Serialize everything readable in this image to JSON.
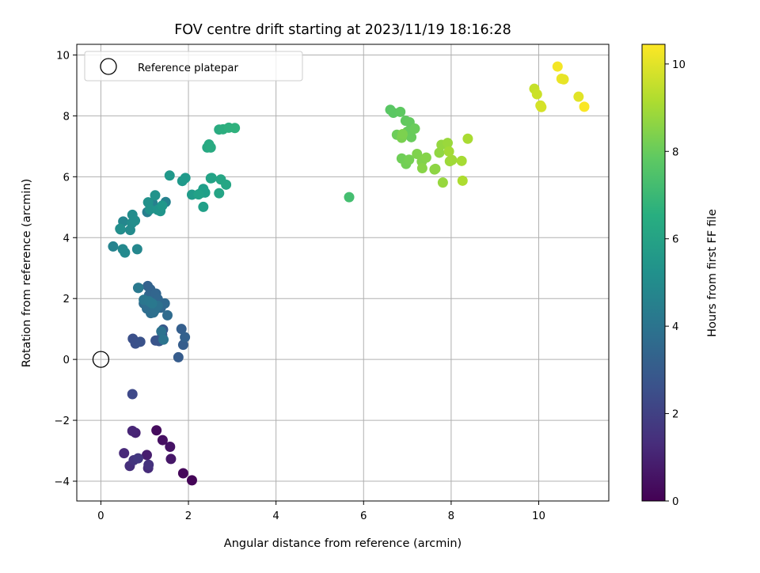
{
  "chart_data": {
    "type": "scatter",
    "title": "FOV centre drift starting at 2023/11/19 18:16:28",
    "xlabel": "Angular distance from reference (arcmin)",
    "ylabel": "Rotation from reference (arcmin)",
    "xlim": [
      -0.55,
      11.6
    ],
    "ylim": [
      -4.65,
      10.35
    ],
    "xticks": [
      0,
      2,
      4,
      6,
      8,
      10
    ],
    "yticks": [
      -4,
      -2,
      0,
      2,
      4,
      6,
      8,
      10
    ],
    "grid": true,
    "colormap": "viridis",
    "colorbar": {
      "label": "Hours from first FF file",
      "range": [
        0,
        10.45
      ],
      "ticks": [
        0,
        2,
        4,
        6,
        8,
        10
      ]
    },
    "legend": {
      "placement": "top-left",
      "entries": [
        {
          "label": "Reference platepar",
          "marker": "open-circle"
        }
      ]
    },
    "reference_point": {
      "x": 0,
      "y": 0
    },
    "series": [
      {
        "x": [
          2.08,
          1.88,
          1.27,
          1.41,
          1.58,
          1.6,
          1.05,
          0.79,
          0.72,
          0.53,
          1.08,
          0.66,
          1.09,
          0.75,
          0.85,
          0.72,
          0.73,
          0.79,
          0.9,
          1.25,
          1.33,
          1.4,
          1.42,
          1.77,
          1.88,
          1.84,
          1.92,
          1.07,
          1.13,
          1.1,
          1.26,
          1.3,
          1.37,
          1.46,
          1.52,
          0.98,
          1.05,
          1.14,
          1.2,
          1.24,
          1.3,
          1.38,
          1.43,
          0.85,
          0.98,
          1.1,
          1.17,
          0.86,
          1.06,
          1.17,
          1.18,
          1.33,
          1.48,
          0.28,
          0.45,
          0.51,
          0.83,
          0.5,
          0.55,
          0.67,
          0.71,
          0.72,
          0.78,
          0.44,
          1.08,
          1.12,
          1.24,
          1.3,
          1.36,
          1.4,
          1.57,
          1.86,
          1.93,
          2.08,
          2.29,
          2.34,
          2.38,
          2.34,
          2.23,
          2.51,
          2.53,
          2.7,
          2.74,
          2.86,
          2.43,
          2.47,
          2.51,
          2.7,
          2.79,
          2.92,
          3.06,
          5.67,
          6.61,
          6.68,
          6.84,
          6.96,
          7.05,
          7.0,
          7.09,
          7.17,
          6.76,
          6.87,
          6.97,
          7.04,
          6.87,
          6.89,
          7.22,
          7.33,
          7.43,
          7.34,
          7.62,
          7.64,
          7.73,
          7.78,
          7.81,
          7.92,
          7.97,
          8.02,
          7.95,
          8.24,
          8.38,
          8.26,
          9.9,
          9.96,
          10.04,
          10.06,
          10.43,
          10.52,
          10.57,
          10.91,
          11.04
        ],
        "y": [
          -3.97,
          -3.74,
          -2.33,
          -2.65,
          -2.87,
          -3.27,
          -3.14,
          -2.41,
          -2.35,
          -3.08,
          -3.57,
          -3.5,
          -3.46,
          -3.31,
          -3.25,
          -1.14,
          0.68,
          0.52,
          0.58,
          0.62,
          0.6,
          0.8,
          0.98,
          0.07,
          0.48,
          1.0,
          0.73,
          2.41,
          2.3,
          2.11,
          2.16,
          1.98,
          1.7,
          1.84,
          1.45,
          1.84,
          1.67,
          1.52,
          1.54,
          1.63,
          1.76,
          0.92,
          0.65,
          2.35,
          1.96,
          1.91,
          1.84,
          2.35,
          4.84,
          4.98,
          5.14,
          4.95,
          5.17,
          3.71,
          4.27,
          4.53,
          3.62,
          3.62,
          3.51,
          4.25,
          4.48,
          4.75,
          4.56,
          4.29,
          5.16,
          4.93,
          5.39,
          4.91,
          4.87,
          5.05,
          6.04,
          5.86,
          5.96,
          5.41,
          5.47,
          5.6,
          5.48,
          5.01,
          5.42,
          5.95,
          5.96,
          5.46,
          5.91,
          5.74,
          6.96,
          7.06,
          6.96,
          7.55,
          7.56,
          7.61,
          7.6,
          5.33,
          8.2,
          8.1,
          8.13,
          7.84,
          7.79,
          7.48,
          7.3,
          7.58,
          7.38,
          6.6,
          6.42,
          6.56,
          7.28,
          7.4,
          6.75,
          6.5,
          6.63,
          6.28,
          6.24,
          6.26,
          6.79,
          7.05,
          5.81,
          7.11,
          6.51,
          6.55,
          6.83,
          6.52,
          7.25,
          5.87,
          8.89,
          8.71,
          8.34,
          8.29,
          9.62,
          9.22,
          9.2,
          8.63,
          8.3
        ],
        "c": [
          0.1,
          0.2,
          0.3,
          0.45,
          0.55,
          0.65,
          0.85,
          1.0,
          1.1,
          1.2,
          1.3,
          1.4,
          1.5,
          1.6,
          1.7,
          2.3,
          2.55,
          2.6,
          2.65,
          2.7,
          2.75,
          2.85,
          2.9,
          3.0,
          3.05,
          3.15,
          3.2,
          3.25,
          3.3,
          3.35,
          3.4,
          3.45,
          3.5,
          3.55,
          3.6,
          3.65,
          3.7,
          3.75,
          3.8,
          3.85,
          3.9,
          3.95,
          4.0,
          4.05,
          4.1,
          4.15,
          4.2,
          4.25,
          4.45,
          4.5,
          4.55,
          4.6,
          4.65,
          4.7,
          4.75,
          4.8,
          4.85,
          4.9,
          4.95,
          5.0,
          5.05,
          5.1,
          5.15,
          5.2,
          5.25,
          5.3,
          5.35,
          5.4,
          5.45,
          5.5,
          5.55,
          5.6,
          5.65,
          5.7,
          5.75,
          5.8,
          5.85,
          5.9,
          5.95,
          6.0,
          6.05,
          6.1,
          6.15,
          6.2,
          6.25,
          6.3,
          6.35,
          6.4,
          6.5,
          6.6,
          6.7,
          7.3,
          7.7,
          7.75,
          7.8,
          7.85,
          7.9,
          7.95,
          8.0,
          8.05,
          8.1,
          8.15,
          8.2,
          8.25,
          8.3,
          8.35,
          8.4,
          8.45,
          8.5,
          8.55,
          8.6,
          8.65,
          8.7,
          8.75,
          8.8,
          8.85,
          8.9,
          8.95,
          9.0,
          9.05,
          9.1,
          9.15,
          9.55,
          9.65,
          9.75,
          9.8,
          10.3,
          10.2,
          10.1,
          10.0,
          10.4
        ]
      }
    ]
  }
}
